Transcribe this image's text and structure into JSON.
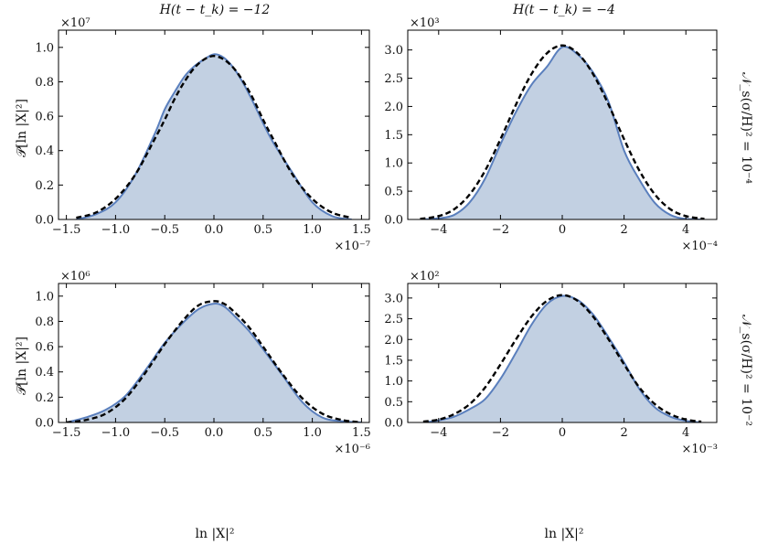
{
  "colors": {
    "fill": "#c2d0e2",
    "kde_line": "#5a7fbd",
    "gaussian_line": "#000000",
    "axes": "#000000"
  },
  "col_titles": [
    "H(t − t_k) = −12",
    "H(t − t_k) = −4"
  ],
  "row_labels": [
    "𝒩_s(σ/H)² = 10⁻⁴",
    "𝒩_s(σ/H)² = 10⁻²"
  ],
  "xlabel": "ln |X|²",
  "ylabel": "𝒫[ln |X|²]",
  "chart_data": [
    {
      "type": "area",
      "panel": "top-left",
      "title": "H(t − t_k) = −12",
      "xlabel": "",
      "ylabel": "𝒫[ln |X|²]",
      "x_multiplier": "×10⁻⁷",
      "y_multiplier": "×10⁷",
      "xlim": [
        -1.58,
        1.58
      ],
      "ylim": [
        0,
        1.1
      ],
      "xticks": [
        -1.5,
        -1.0,
        -0.5,
        0.0,
        0.5,
        1.0,
        1.5
      ],
      "xtick_labels": [
        "−1.5",
        "−1.0",
        "−0.5",
        "0.0",
        "0.5",
        "1.0",
        "1.5"
      ],
      "yticks": [
        0.0,
        0.2,
        0.4,
        0.6,
        0.8,
        1.0
      ],
      "ytick_labels": [
        "0.0",
        "0.2",
        "0.4",
        "0.6",
        "0.8",
        "1.0"
      ],
      "series": [
        {
          "x": [
            -1.4,
            -1.2,
            -1.0,
            -0.8,
            -0.6,
            -0.5,
            -0.4,
            -0.3,
            -0.2,
            -0.1,
            0.0,
            0.1,
            0.2,
            0.3,
            0.4,
            0.5,
            0.6,
            0.8,
            1.0,
            1.2,
            1.4
          ],
          "y": [
            0.0,
            0.03,
            0.1,
            0.26,
            0.5,
            0.64,
            0.74,
            0.83,
            0.89,
            0.93,
            0.96,
            0.94,
            0.88,
            0.79,
            0.68,
            0.56,
            0.45,
            0.27,
            0.1,
            0.02,
            0.0
          ]
        },
        {
          "x": [
            -1.4,
            -1.2,
            -1.0,
            -0.8,
            -0.6,
            -0.5,
            -0.4,
            -0.3,
            -0.2,
            -0.1,
            0.0,
            0.1,
            0.2,
            0.3,
            0.4,
            0.5,
            0.6,
            0.8,
            1.0,
            1.2,
            1.4
          ],
          "y": [
            0.01,
            0.04,
            0.12,
            0.26,
            0.47,
            0.58,
            0.7,
            0.8,
            0.88,
            0.93,
            0.95,
            0.93,
            0.88,
            0.8,
            0.7,
            0.58,
            0.47,
            0.26,
            0.12,
            0.04,
            0.01
          ]
        }
      ]
    },
    {
      "type": "area",
      "panel": "top-right",
      "title": "H(t − t_k) = −4",
      "xlabel": "",
      "ylabel": "",
      "x_multiplier": "×10⁻⁴",
      "y_multiplier": "×10³",
      "xlim": [
        -5.0,
        5.0
      ],
      "ylim": [
        0,
        3.35
      ],
      "xticks": [
        -4,
        -2,
        0,
        2,
        4
      ],
      "xtick_labels": [
        "−4",
        "−2",
        "0",
        "2",
        "4"
      ],
      "yticks": [
        0.0,
        0.5,
        1.0,
        1.5,
        2.0,
        2.5,
        3.0
      ],
      "ytick_labels": [
        "0.0",
        "0.5",
        "1.0",
        "1.5",
        "2.0",
        "2.5",
        "3.0"
      ],
      "series": [
        {
          "x": [
            -4.6,
            -4.0,
            -3.5,
            -3.0,
            -2.5,
            -2.0,
            -1.5,
            -1.0,
            -0.5,
            0.0,
            0.5,
            1.0,
            1.5,
            2.0,
            2.5,
            3.0,
            3.5,
            4.0,
            4.6
          ],
          "y": [
            0.0,
            0.02,
            0.08,
            0.3,
            0.72,
            1.33,
            1.9,
            2.38,
            2.7,
            3.05,
            2.92,
            2.6,
            2.08,
            1.22,
            0.7,
            0.29,
            0.08,
            0.01,
            0.0
          ]
        },
        {
          "x": [
            -4.6,
            -4.0,
            -3.5,
            -3.0,
            -2.5,
            -2.0,
            -1.5,
            -1.0,
            -0.5,
            0.0,
            0.5,
            1.0,
            1.5,
            2.0,
            2.5,
            3.0,
            3.5,
            4.0,
            4.6
          ],
          "y": [
            0.01,
            0.06,
            0.18,
            0.44,
            0.86,
            1.42,
            2.03,
            2.57,
            2.94,
            3.08,
            2.94,
            2.57,
            2.03,
            1.42,
            0.86,
            0.44,
            0.18,
            0.06,
            0.01
          ]
        }
      ]
    },
    {
      "type": "area",
      "panel": "bottom-left",
      "title": "",
      "xlabel": "ln |X|²",
      "ylabel": "𝒫[ln |X|²]",
      "x_multiplier": "×10⁻⁶",
      "y_multiplier": "×10⁶",
      "xlim": [
        -1.58,
        1.58
      ],
      "ylim": [
        0,
        1.1
      ],
      "xticks": [
        -1.5,
        -1.0,
        -0.5,
        0.0,
        0.5,
        1.0,
        1.5
      ],
      "xtick_labels": [
        "−1.5",
        "−1.0",
        "−0.5",
        "0.0",
        "0.5",
        "1.0",
        "1.5"
      ],
      "yticks": [
        0.0,
        0.2,
        0.4,
        0.6,
        0.8,
        1.0
      ],
      "ytick_labels": [
        "0.0",
        "0.2",
        "0.4",
        "0.6",
        "0.8",
        "1.0"
      ],
      "series": [
        {
          "x": [
            -1.5,
            -1.3,
            -1.1,
            -0.9,
            -0.7,
            -0.5,
            -0.3,
            -0.15,
            0.0,
            0.1,
            0.2,
            0.35,
            0.5,
            0.7,
            0.9,
            1.1,
            1.3,
            1.5
          ],
          "y": [
            0.0,
            0.04,
            0.1,
            0.21,
            0.41,
            0.63,
            0.8,
            0.9,
            0.94,
            0.92,
            0.85,
            0.73,
            0.58,
            0.37,
            0.16,
            0.04,
            0.01,
            0.0
          ]
        },
        {
          "x": [
            -1.5,
            -1.3,
            -1.1,
            -0.9,
            -0.7,
            -0.5,
            -0.3,
            -0.15,
            0.0,
            0.1,
            0.2,
            0.35,
            0.5,
            0.7,
            0.9,
            1.1,
            1.3,
            1.5
          ],
          "y": [
            0.0,
            0.02,
            0.07,
            0.19,
            0.39,
            0.62,
            0.82,
            0.93,
            0.96,
            0.94,
            0.88,
            0.76,
            0.6,
            0.38,
            0.19,
            0.07,
            0.02,
            0.0
          ]
        }
      ]
    },
    {
      "type": "area",
      "panel": "bottom-right",
      "title": "",
      "xlabel": "ln |X|²",
      "ylabel": "",
      "x_multiplier": "×10⁻³",
      "y_multiplier": "×10²",
      "xlim": [
        -5.0,
        5.0
      ],
      "ylim": [
        0,
        3.35
      ],
      "xticks": [
        -4,
        -2,
        0,
        2,
        4
      ],
      "xtick_labels": [
        "−4",
        "−2",
        "0",
        "2",
        "4"
      ],
      "yticks": [
        0.0,
        0.5,
        1.0,
        1.5,
        2.0,
        2.5,
        3.0
      ],
      "ytick_labels": [
        "0.0",
        "0.5",
        "1.0",
        "1.5",
        "2.0",
        "2.5",
        "3.0"
      ],
      "series": [
        {
          "x": [
            -4.5,
            -4.0,
            -3.5,
            -3.0,
            -2.5,
            -2.0,
            -1.5,
            -1.0,
            -0.5,
            0.0,
            0.5,
            1.0,
            1.5,
            2.0,
            2.5,
            3.0,
            3.5,
            4.0,
            4.5
          ],
          "y": [
            0.0,
            0.05,
            0.14,
            0.32,
            0.56,
            1.05,
            1.68,
            2.35,
            2.85,
            3.05,
            2.95,
            2.6,
            2.05,
            1.45,
            0.8,
            0.36,
            0.14,
            0.04,
            0.0
          ]
        },
        {
          "x": [
            -4.5,
            -4.0,
            -3.5,
            -3.0,
            -2.5,
            -2.0,
            -1.5,
            -1.0,
            -0.5,
            0.0,
            0.5,
            1.0,
            1.5,
            2.0,
            2.5,
            3.0,
            3.5,
            4.0,
            4.5
          ],
          "y": [
            0.02,
            0.07,
            0.2,
            0.44,
            0.84,
            1.4,
            2.0,
            2.55,
            2.93,
            3.07,
            2.93,
            2.55,
            2.0,
            1.4,
            0.84,
            0.44,
            0.2,
            0.07,
            0.02
          ]
        }
      ]
    }
  ]
}
